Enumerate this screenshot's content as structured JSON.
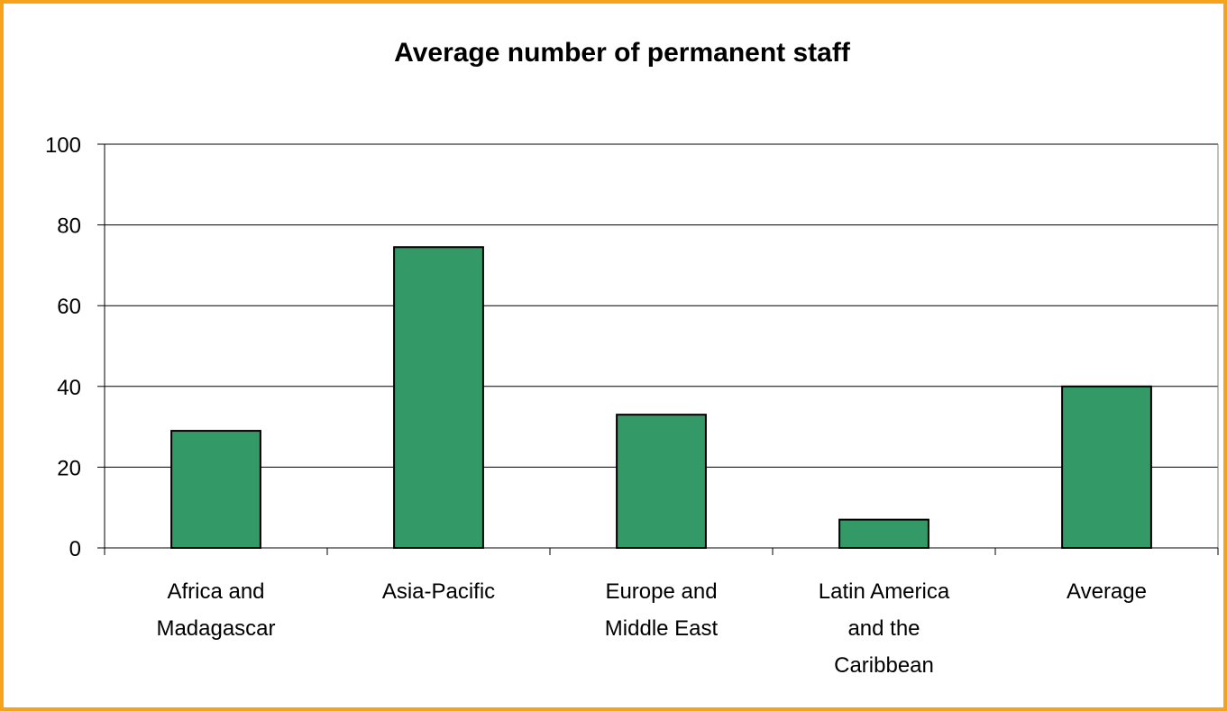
{
  "chart_data": {
    "type": "bar",
    "title": "Average number of permanent staff",
    "xlabel": "",
    "ylabel": "",
    "categories": [
      [
        "Africa and",
        "Madagascar"
      ],
      [
        "Asia-Pacific"
      ],
      [
        "Europe and",
        "Middle East"
      ],
      [
        "Latin America",
        "and the",
        "Caribbean"
      ],
      [
        "Average"
      ]
    ],
    "values": [
      29,
      74.5,
      33,
      7,
      40
    ],
    "ylim": [
      0,
      100
    ],
    "yticks": [
      "0",
      "20",
      "40",
      "60",
      "80",
      "100"
    ],
    "grid": true,
    "legend": "none",
    "colors": {
      "bar": "#339966",
      "bar_outline": "#000000",
      "border": "#F7A21B",
      "grid": "#000000"
    }
  }
}
